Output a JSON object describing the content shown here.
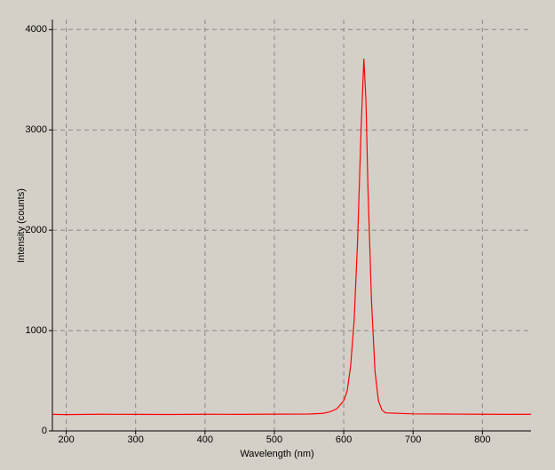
{
  "chart_data": {
    "type": "line",
    "x_label": "Wavelength (nm)",
    "y_label": "Intensity (counts)",
    "x": [
      180,
      200,
      250,
      300,
      350,
      400,
      450,
      500,
      550,
      570,
      580,
      590,
      600,
      605,
      610,
      615,
      620,
      625,
      629,
      632,
      635,
      640,
      645,
      650,
      655,
      660,
      700,
      750,
      800,
      850,
      870
    ],
    "values": [
      165,
      163,
      166,
      165,
      164,
      166,
      165,
      167,
      168,
      175,
      190,
      220,
      300,
      400,
      650,
      1100,
      1900,
      3000,
      3710,
      3300,
      2400,
      1300,
      600,
      300,
      210,
      180,
      170,
      168,
      166,
      165,
      166
    ],
    "color": "#ff0000",
    "xlim": [
      180,
      870
    ],
    "xticks": [
      200,
      300,
      400,
      500,
      600,
      700,
      800
    ],
    "ylim": [
      0,
      4100
    ],
    "yticks": [
      0,
      1000,
      2000,
      3000,
      4000
    ],
    "grid": true
  }
}
